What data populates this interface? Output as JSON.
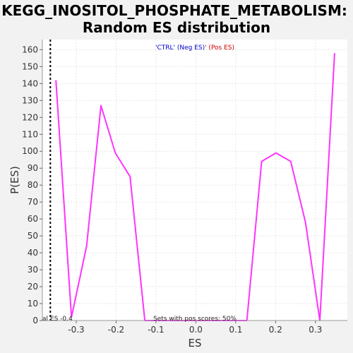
{
  "chart_data": {
    "type": "line",
    "title_lines": [
      "KEGG_INOSITOL_PHOSPHATE_METABOLISM:",
      "Random ES distribution"
    ],
    "xlabel": "ES",
    "ylabel": "P(ES)",
    "xlim": [
      -0.385,
      0.38
    ],
    "ylim": [
      0,
      166
    ],
    "xticks": [
      -0.3,
      -0.2,
      -0.1,
      0.0,
      0.1,
      0.2,
      0.3
    ],
    "xtick_labels": [
      "-0.3",
      "-0.2",
      "-0.1",
      "0.0",
      "0.1",
      "0.2",
      "0.3"
    ],
    "yticks": [
      0,
      10,
      20,
      30,
      40,
      50,
      60,
      70,
      80,
      90,
      100,
      110,
      120,
      130,
      140,
      150,
      160
    ],
    "ytick_labels": [
      "0",
      "10",
      "20",
      "30",
      "40",
      "50",
      "60",
      "70",
      "80",
      "90",
      "100",
      "110",
      "120",
      "130",
      "140",
      "150",
      "160"
    ],
    "grid": true,
    "series": [
      {
        "color": "#ff33ff",
        "x": [
          -0.351,
          -0.312,
          -0.274,
          -0.238,
          -0.202,
          -0.165,
          -0.128,
          -0.092,
          -0.055,
          -0.019,
          0.018,
          0.054,
          0.091,
          0.128,
          0.165,
          0.201,
          0.238,
          0.275,
          0.311,
          0.348
        ],
        "y": [
          142,
          2,
          44,
          127,
          99,
          85,
          0,
          0,
          0,
          0,
          0,
          0,
          0,
          0,
          94,
          99,
          94,
          58,
          0,
          158
        ]
      }
    ],
    "vline": {
      "x": -0.365,
      "color": "#000000",
      "style": "dashed"
    },
    "legend": {
      "position": "top-center",
      "items": [
        {
          "text": "'CTRL' (Neg ES)",
          "color": "#0000cc"
        },
        {
          "text": "' (Pos ES)",
          "color": "#cc0000"
        }
      ]
    },
    "annotations": {
      "actual_es": "al ES -0.4",
      "pos_scores": "Sets with pos scores: 50%"
    },
    "colors": {
      "background": "#f2f2f2",
      "plot_background": "#ffffff",
      "grid": "#e6e6e6"
    }
  }
}
